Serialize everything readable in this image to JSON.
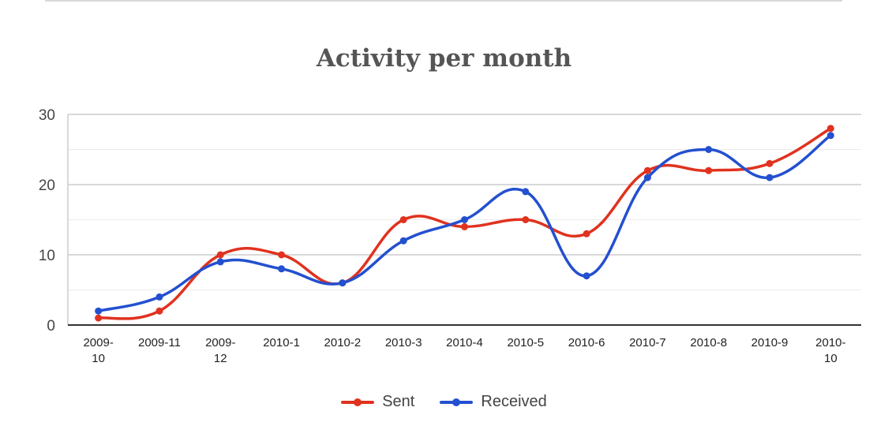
{
  "chart_data": {
    "type": "line",
    "title": "Activity per month",
    "xlabel": "",
    "ylabel": "",
    "categories": [
      "2009-10",
      "2009-11",
      "2009-12",
      "2010-1",
      "2010-2",
      "2010-3",
      "2010-4",
      "2010-5",
      "2010-6",
      "2010-7",
      "2010-8",
      "2010-9",
      "2010-10"
    ],
    "category_labels": [
      [
        "2009-",
        "10"
      ],
      [
        "2009-11"
      ],
      [
        "2009-",
        "12"
      ],
      [
        "2010-1"
      ],
      [
        "2010-2"
      ],
      [
        "2010-3"
      ],
      [
        "2010-4"
      ],
      [
        "2010-5"
      ],
      [
        "2010-6"
      ],
      [
        "2010-7"
      ],
      [
        "2010-8"
      ],
      [
        "2010-9"
      ],
      [
        "2010-",
        "10"
      ]
    ],
    "series": [
      {
        "name": "Sent",
        "color": "#e0321f",
        "values": [
          1,
          2,
          10,
          10,
          6,
          15,
          14,
          15,
          13,
          22,
          22,
          23,
          28
        ]
      },
      {
        "name": "Received",
        "color": "#2350cf",
        "values": [
          2,
          4,
          9,
          8,
          6,
          12,
          15,
          19,
          7,
          21,
          25,
          21,
          27
        ]
      }
    ],
    "ylim": [
      0,
      30
    ],
    "yticks": [
      0,
      10,
      20,
      30
    ],
    "minor_gridlines": [
      5,
      15,
      25
    ],
    "grid": true,
    "curve": "smooth",
    "legend_position": "bottom"
  }
}
